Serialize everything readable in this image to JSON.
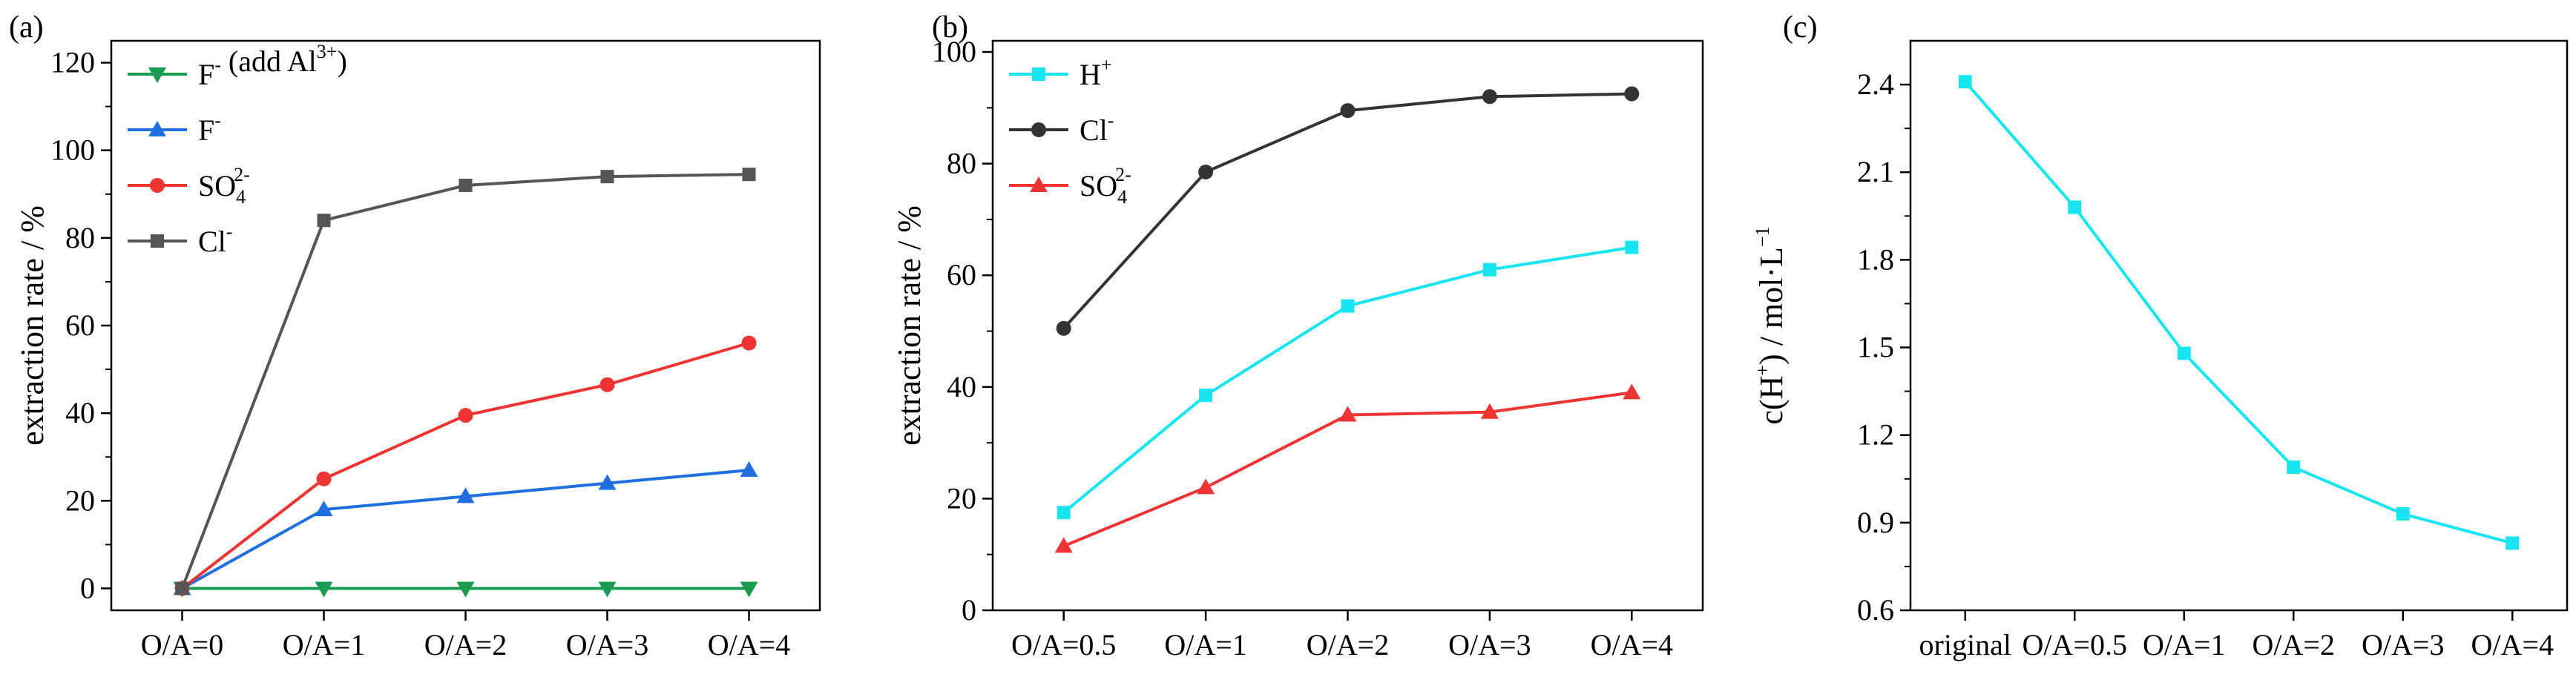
{
  "chart_data": [
    {
      "type": "line",
      "panel_label": "(a)",
      "xlabel": "",
      "ylabel": "extraction rate / %",
      "categories": [
        "O/A=0",
        "O/A=1",
        "O/A=2",
        "O/A=3",
        "O/A=4"
      ],
      "ylim": [
        -5,
        125
      ],
      "yticks": [
        0,
        20,
        40,
        60,
        80,
        100,
        120
      ],
      "legend_position": "top-left",
      "series": [
        {
          "name": "F⁻ (add Al³⁺)",
          "legend": {
            "base": "F",
            "sup": "-",
            "suffix": " (add Al",
            "suffix_sup": "3+",
            "tail": ")"
          },
          "color": "#1a9c50",
          "marker": "triangle-down",
          "values": [
            0,
            0,
            0,
            0,
            0
          ]
        },
        {
          "name": "F⁻",
          "legend": {
            "base": "F",
            "sup": "-"
          },
          "color": "#1f6fe0",
          "marker": "triangle-up",
          "values": [
            0,
            18,
            21,
            24,
            27
          ]
        },
        {
          "name": "SO₄²⁻",
          "legend": {
            "base": "SO",
            "sub": "4",
            "sup": "2-"
          },
          "color": "#ee3333",
          "marker": "circle",
          "values": [
            0,
            25,
            39.5,
            46.5,
            56
          ]
        },
        {
          "name": "Cl⁻",
          "legend": {
            "base": "Cl",
            "sup": "-"
          },
          "color": "#555555",
          "marker": "square",
          "values": [
            0,
            84,
            92,
            94,
            94.5
          ]
        }
      ]
    },
    {
      "type": "line",
      "panel_label": "(b)",
      "xlabel": "",
      "ylabel": "extraction rate / %",
      "categories": [
        "O/A=0.5",
        "O/A=1",
        "O/A=2",
        "O/A=3",
        "O/A=4"
      ],
      "ylim": [
        0,
        102
      ],
      "yticks": [
        0,
        20,
        40,
        60,
        80,
        100
      ],
      "legend_position": "top-left",
      "series": [
        {
          "name": "H⁺",
          "legend": {
            "base": "H",
            "sup": "+"
          },
          "color": "#19e5f0",
          "marker": "square",
          "values": [
            17.5,
            38.5,
            54.5,
            61,
            65
          ]
        },
        {
          "name": "Cl⁻",
          "legend": {
            "base": "Cl",
            "sup": "-"
          },
          "color": "#333333",
          "marker": "circle",
          "values": [
            50.5,
            78.5,
            89.5,
            92,
            92.5
          ]
        },
        {
          "name": "SO₄²⁻",
          "legend": {
            "base": "SO",
            "sub": "4",
            "sup": "2-"
          },
          "color": "#ee3333",
          "marker": "triangle-up",
          "values": [
            11.5,
            22,
            35,
            35.5,
            39
          ]
        }
      ]
    },
    {
      "type": "line",
      "panel_label": "(c)",
      "xlabel": "",
      "ylabel": "c(H⁺) / mol·L⁻¹",
      "ylabel_parts": {
        "a": "c(H",
        "a_sup": "+",
        "b": ") / mol·L",
        "b_sup": "−1"
      },
      "categories": [
        "original",
        "O/A=0.5",
        "O/A=1",
        "O/A=2",
        "O/A=3",
        "O/A=4"
      ],
      "ylim": [
        0.6,
        2.55
      ],
      "yticks": [
        "0.6",
        "0.9",
        "1.2",
        "1.5",
        "1.8",
        "2.1",
        "2.4"
      ],
      "series": [
        {
          "name": "c(H⁺)",
          "color": "#19e5f0",
          "marker": "square",
          "values": [
            2.41,
            1.98,
            1.48,
            1.09,
            0.93,
            0.83
          ]
        }
      ]
    }
  ]
}
